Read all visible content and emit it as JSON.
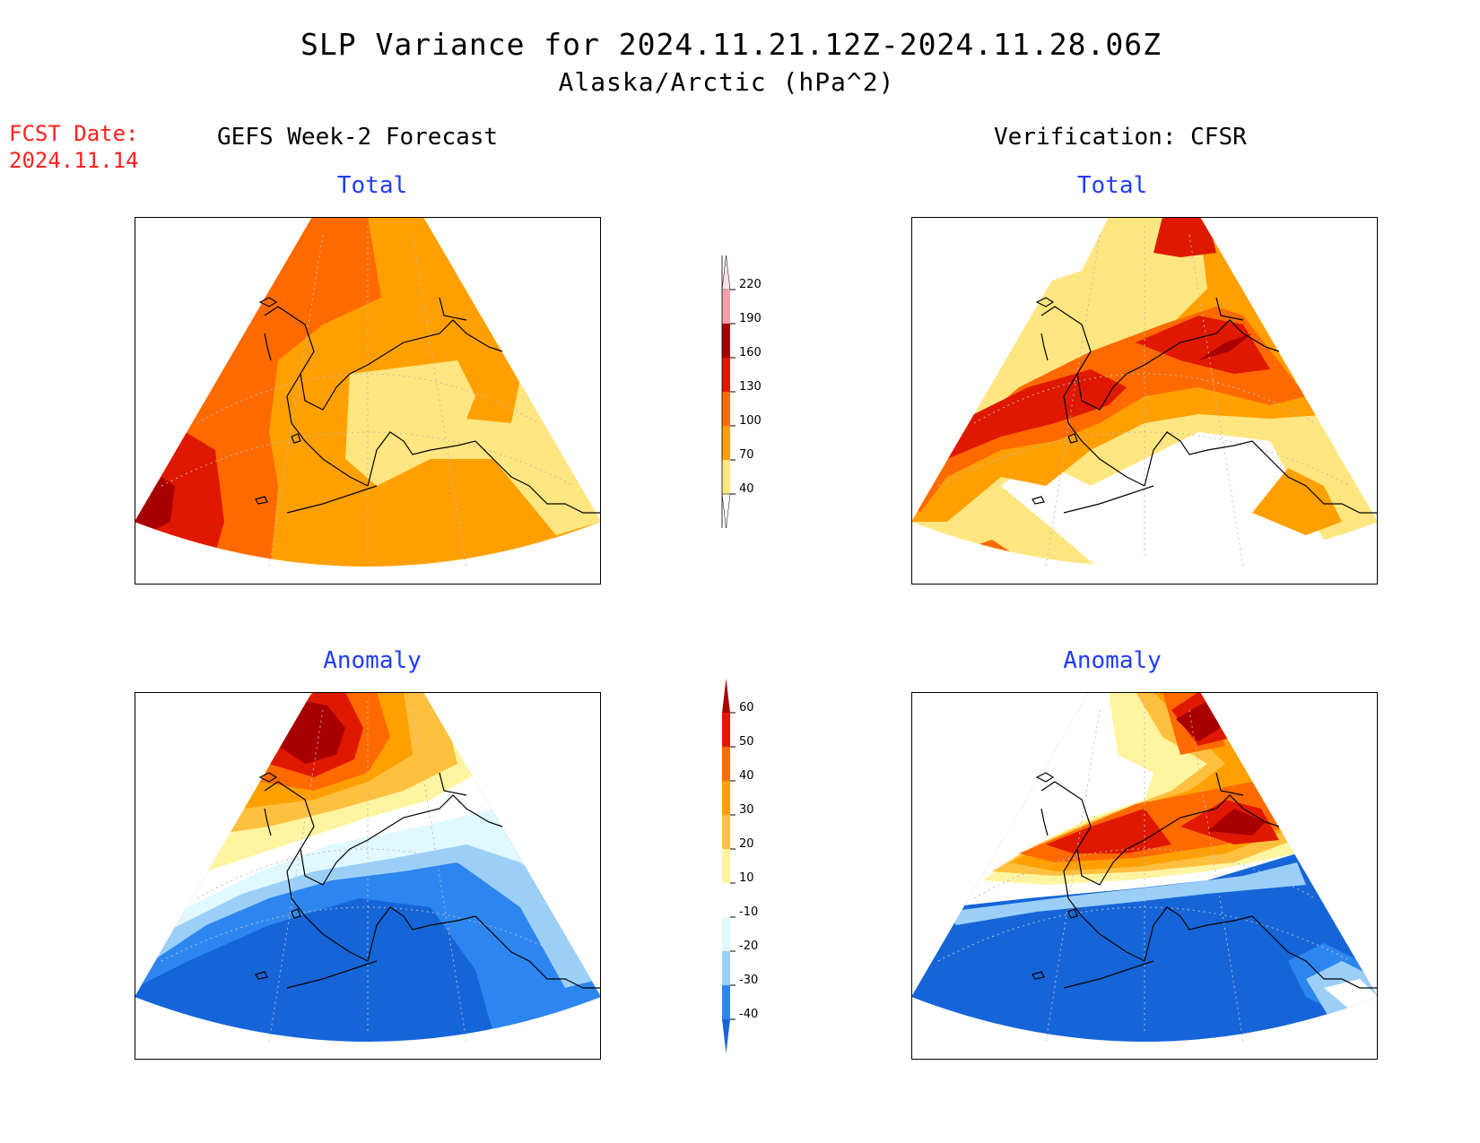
{
  "header": {
    "title": "SLP Variance for 2024.11.21.12Z-2024.11.28.06Z",
    "subtitle": "Alaska/Arctic (hPa^2)",
    "fcst_label": "FCST Date:",
    "fcst_date": "2024.11.14"
  },
  "columns": {
    "left": "GEFS Week-2 Forecast",
    "right": "Verification: CFSR"
  },
  "panels": {
    "forecast_total": "Total",
    "verification_total": "Total",
    "forecast_anomaly": "Anomaly",
    "verification_anomaly": "Anomaly"
  },
  "colorbars": {
    "total": {
      "levels": [
        "40",
        "70",
        "100",
        "130",
        "160",
        "190",
        "220"
      ],
      "colors": [
        "#ffffff",
        "#ffe680",
        "#ffa000",
        "#ff6a00",
        "#e01800",
        "#a80000",
        "#f4a0a8",
        "#fde0e4"
      ]
    },
    "anomaly": {
      "levels": [
        "-40",
        "-30",
        "-20",
        "-10",
        "10",
        "20",
        "30",
        "40",
        "50",
        "60"
      ],
      "colors": [
        "#1565d8",
        "#2d86f0",
        "#9ccff8",
        "#e0f8ff",
        "#ffffff",
        "#fff4a0",
        "#ffc040",
        "#ffa000",
        "#ff6a00",
        "#e01800",
        "#a80000"
      ]
    }
  },
  "colors": {
    "title_text": "#000000",
    "fcst_text": "#ff2020",
    "panel_title_text": "#1f3cff"
  }
}
